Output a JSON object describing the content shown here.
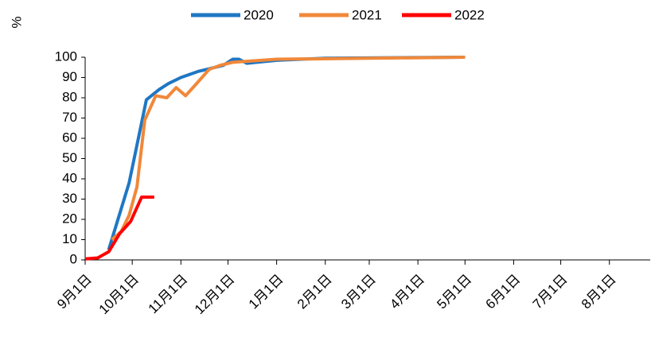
{
  "chart_data": {
    "type": "line",
    "ylabel": "%",
    "xlim": [
      0,
      360
    ],
    "xticks": [
      {
        "value": 0,
        "label": "9月1日"
      },
      {
        "value": 30,
        "label": "10月1日"
      },
      {
        "value": 61,
        "label": "11月1日"
      },
      {
        "value": 91,
        "label": "12月1日"
      },
      {
        "value": 122,
        "label": "1月1日"
      },
      {
        "value": 153,
        "label": "2月1日"
      },
      {
        "value": 181,
        "label": "3月1日"
      },
      {
        "value": 212,
        "label": "4月1日"
      },
      {
        "value": 242,
        "label": "5月1日"
      },
      {
        "value": 273,
        "label": "6月1日"
      },
      {
        "value": 303,
        "label": "7月1日"
      },
      {
        "value": 334,
        "label": "8月1日"
      }
    ],
    "ylim": [
      0,
      100
    ],
    "yticks": [
      0,
      10,
      20,
      30,
      40,
      50,
      60,
      70,
      80,
      90,
      100
    ],
    "grid": false,
    "legend": "top",
    "series": [
      {
        "name": "2020",
        "color": "#1f77c4",
        "x": [
          15,
          28,
          39,
          47,
          53,
          61,
          72,
          88,
          94,
          98,
          103,
          122,
          153,
          242
        ],
        "values": [
          5,
          38,
          79,
          84,
          87,
          90,
          93,
          96,
          99,
          99,
          97,
          98.5,
          99.5,
          100
        ]
      },
      {
        "name": "2021",
        "color": "#f0883a",
        "x": [
          17,
          23,
          28,
          33,
          38,
          45,
          52,
          58,
          64,
          71,
          79,
          86,
          94,
          122,
          242
        ],
        "values": [
          10,
          14,
          22,
          36,
          69,
          81,
          80,
          85,
          81,
          87,
          94,
          96,
          97.5,
          99,
          100
        ]
      },
      {
        "name": "2022",
        "color": "#ff0000",
        "x": [
          0,
          8,
          15,
          22,
          29,
          36,
          44
        ],
        "values": [
          0.5,
          1,
          4,
          13,
          19,
          31,
          31
        ]
      }
    ]
  }
}
